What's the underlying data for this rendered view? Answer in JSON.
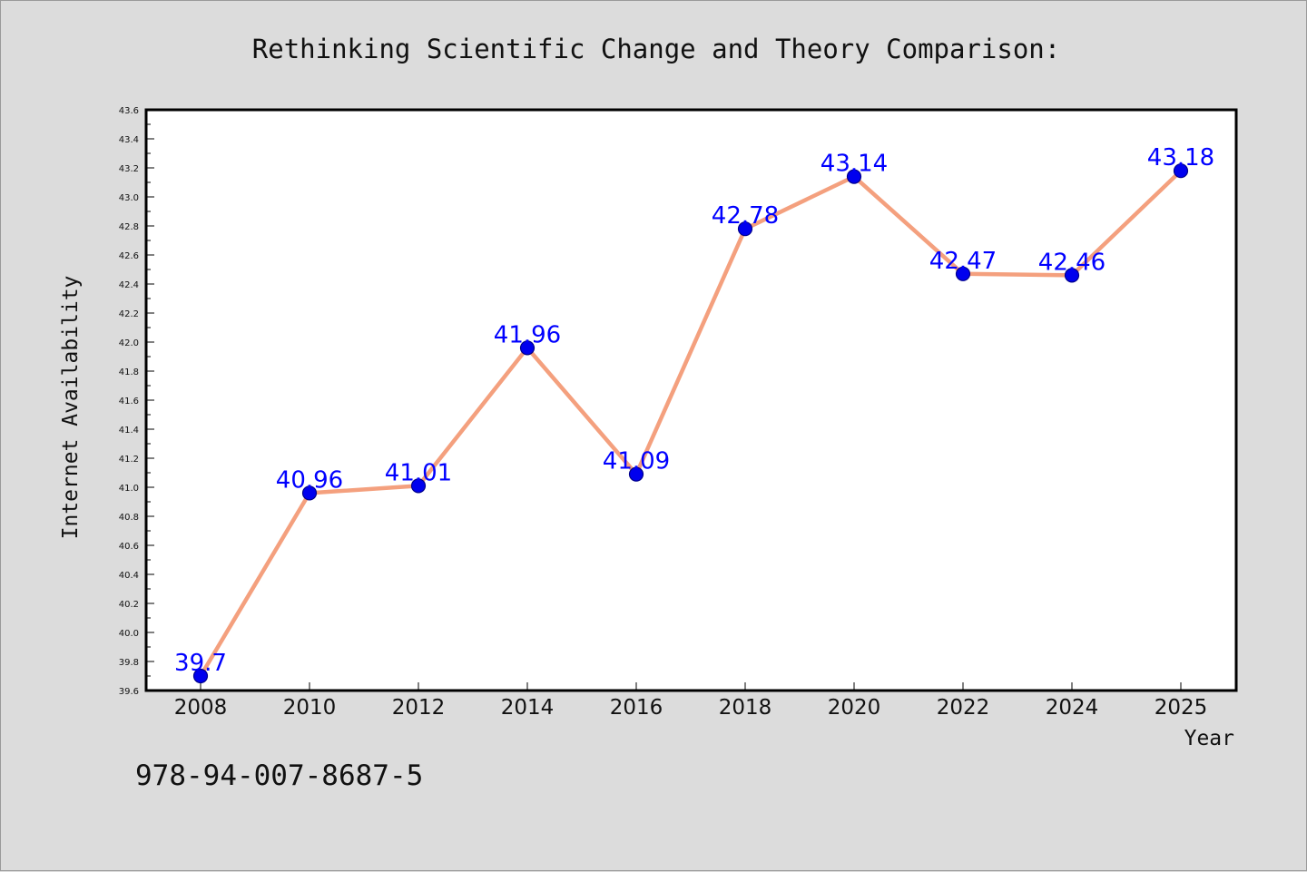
{
  "chart_data": {
    "type": "line",
    "title": "Rethinking Scientific Change and Theory Comparison:",
    "xlabel": "Year",
    "ylabel": "Internet Availability",
    "x": [
      "2008",
      "2010",
      "2012",
      "2014",
      "2016",
      "2018",
      "2020",
      "2022",
      "2024",
      "2025"
    ],
    "values": [
      39.7,
      40.96,
      41.01,
      41.96,
      41.09,
      42.78,
      43.14,
      42.47,
      42.46,
      43.18
    ],
    "data_labels": [
      "39.7",
      "40.96",
      "41.01",
      "41.96",
      "41.09",
      "42.78",
      "43.14",
      "42.47",
      "42.46",
      "43.18"
    ],
    "ylim": [
      39.6,
      43.6
    ],
    "yticks": [
      "39.6",
      "39.8",
      "40.0",
      "40.2",
      "40.4",
      "40.6",
      "40.8",
      "41.0",
      "41.2",
      "41.4",
      "41.6",
      "41.8",
      "42.0",
      "42.2",
      "42.4",
      "42.6",
      "42.8",
      "43.0",
      "43.2",
      "43.4",
      "43.6"
    ],
    "grid": false,
    "legend": "none",
    "colors": {
      "line": "#f4a07e",
      "marker": "#0000ee",
      "marker_edge": "#00008b",
      "data_label": "#0000ff",
      "background": "#dcdcdc",
      "plot_background": "#ffffff"
    }
  },
  "footnote": "978-94-007-8687-5"
}
